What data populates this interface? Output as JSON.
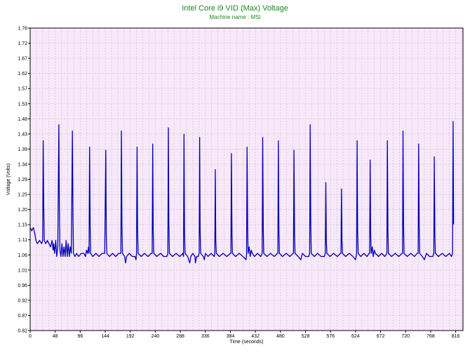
{
  "chart_data": {
    "type": "line",
    "title": "Intel Core i9 VID (Max) Voltage",
    "subtitle": "Machine name : MSI",
    "xlabel": "Time (seconds)",
    "ylabel": "Voltage (Volts)",
    "xlim": [
      0,
      830
    ],
    "ylim": [
      0.82,
      1.76
    ],
    "x_ticks": [
      0,
      48,
      96,
      144,
      192,
      240,
      288,
      336,
      384,
      432,
      480,
      528,
      576,
      624,
      672,
      720,
      768,
      816
    ],
    "y_ticks": [
      "0.82",
      "0.87",
      "0.92",
      "0.96",
      "1.01",
      "1.06",
      "1.11",
      "1.15",
      "1.20",
      "1.25",
      "1.29",
      "1.34",
      "1.39",
      "1.43",
      "1.48",
      "1.53",
      "1.57",
      "1.62",
      "1.67",
      "1.72",
      "1.76"
    ],
    "grid": true,
    "colors": {
      "line": "#0000b4",
      "background": "#f7e8fa",
      "grid": "#c8bcc8",
      "title": "#1a8a1a"
    },
    "series": [
      {
        "values": [
          [
            0,
            1.14
          ],
          [
            3,
            1.13
          ],
          [
            6,
            1.14
          ],
          [
            9,
            1.12
          ],
          [
            11,
            1.1
          ],
          [
            14,
            1.09
          ],
          [
            18,
            1.1
          ],
          [
            22,
            1.09
          ],
          [
            24,
            1.1
          ],
          [
            25,
            1.41
          ],
          [
            26,
            1.22
          ],
          [
            27,
            1.1
          ],
          [
            30,
            1.09
          ],
          [
            33,
            1.1
          ],
          [
            36,
            1.09
          ],
          [
            39,
            1.08
          ],
          [
            42,
            1.1
          ],
          [
            44,
            1.07
          ],
          [
            45,
            1.09
          ],
          [
            47,
            1.06
          ],
          [
            49,
            1.1
          ],
          [
            51,
            1.05
          ],
          [
            53,
            1.08
          ],
          [
            55,
            1.46
          ],
          [
            56,
            1.2
          ],
          [
            57,
            1.07
          ],
          [
            59,
            1.05
          ],
          [
            61,
            1.09
          ],
          [
            63,
            1.05
          ],
          [
            65,
            1.08
          ],
          [
            67,
            1.05
          ],
          [
            69,
            1.1
          ],
          [
            71,
            1.05
          ],
          [
            73,
            1.09
          ],
          [
            75,
            1.05
          ],
          [
            77,
            1.08
          ],
          [
            79,
            1.06
          ],
          [
            81,
            1.44
          ],
          [
            82,
            1.18
          ],
          [
            83,
            1.06
          ],
          [
            86,
            1.05
          ],
          [
            89,
            1.06
          ],
          [
            93,
            1.05
          ],
          [
            98,
            1.06
          ],
          [
            103,
            1.06
          ],
          [
            106,
            1.05
          ],
          [
            108,
            1.07
          ],
          [
            110,
            1.06
          ],
          [
            112,
            1.08
          ],
          [
            113,
            1.06
          ],
          [
            114,
            1.39
          ],
          [
            115,
            1.15
          ],
          [
            116,
            1.06
          ],
          [
            120,
            1.05
          ],
          [
            126,
            1.06
          ],
          [
            132,
            1.05
          ],
          [
            138,
            1.06
          ],
          [
            143,
            1.06
          ],
          [
            145,
            1.38
          ],
          [
            146,
            1.12
          ],
          [
            147,
            1.06
          ],
          [
            152,
            1.05
          ],
          [
            158,
            1.06
          ],
          [
            164,
            1.05
          ],
          [
            170,
            1.06
          ],
          [
            174,
            1.06
          ],
          [
            175,
            1.44
          ],
          [
            176,
            1.15
          ],
          [
            177,
            1.06
          ],
          [
            181,
            1.05
          ],
          [
            183,
            1.03
          ],
          [
            185,
            1.05
          ],
          [
            190,
            1.06
          ],
          [
            196,
            1.05
          ],
          [
            201,
            1.05
          ],
          [
            203,
            1.04
          ],
          [
            204,
            1.06
          ],
          [
            205,
            1.39
          ],
          [
            206,
            1.14
          ],
          [
            207,
            1.06
          ],
          [
            213,
            1.05
          ],
          [
            219,
            1.06
          ],
          [
            226,
            1.05
          ],
          [
            232,
            1.06
          ],
          [
            234,
            1.06
          ],
          [
            235,
            1.4
          ],
          [
            236,
            1.13
          ],
          [
            237,
            1.06
          ],
          [
            243,
            1.05
          ],
          [
            250,
            1.06
          ],
          [
            256,
            1.05
          ],
          [
            262,
            1.05
          ],
          [
            264,
            1.06
          ],
          [
            265,
            1.45
          ],
          [
            266,
            1.16
          ],
          [
            267,
            1.06
          ],
          [
            273,
            1.05
          ],
          [
            280,
            1.06
          ],
          [
            287,
            1.05
          ],
          [
            293,
            1.06
          ],
          [
            294,
            1.05
          ],
          [
            295,
            1.43
          ],
          [
            296,
            1.14
          ],
          [
            297,
            1.06
          ],
          [
            302,
            1.05
          ],
          [
            306,
            1.03
          ],
          [
            308,
            1.05
          ],
          [
            312,
            1.06
          ],
          [
            316,
            1.05
          ],
          [
            317,
            1.03
          ],
          [
            319,
            1.05
          ],
          [
            322,
            1.05
          ],
          [
            324,
            1.06
          ],
          [
            325,
            1.42
          ],
          [
            326,
            1.13
          ],
          [
            327,
            1.06
          ],
          [
            332,
            1.05
          ],
          [
            334,
            1.04
          ],
          [
            336,
            1.06
          ],
          [
            341,
            1.05
          ],
          [
            347,
            1.06
          ],
          [
            353,
            1.05
          ],
          [
            354,
            1.06
          ],
          [
            355,
            1.32
          ],
          [
            356,
            1.1
          ],
          [
            357,
            1.06
          ],
          [
            363,
            1.05
          ],
          [
            370,
            1.06
          ],
          [
            377,
            1.05
          ],
          [
            384,
            1.06
          ],
          [
            385,
            1.06
          ],
          [
            386,
            1.37
          ],
          [
            387,
            1.12
          ],
          [
            388,
            1.06
          ],
          [
            394,
            1.05
          ],
          [
            401,
            1.06
          ],
          [
            408,
            1.05
          ],
          [
            414,
            1.04
          ],
          [
            415,
            1.06
          ],
          [
            416,
            1.39
          ],
          [
            417,
            1.14
          ],
          [
            418,
            1.06
          ],
          [
            420,
            1.08
          ],
          [
            422,
            1.05
          ],
          [
            424,
            1.07
          ],
          [
            426,
            1.06
          ],
          [
            430,
            1.05
          ],
          [
            436,
            1.06
          ],
          [
            442,
            1.05
          ],
          [
            445,
            1.06
          ],
          [
            446,
            1.42
          ],
          [
            447,
            1.14
          ],
          [
            448,
            1.06
          ],
          [
            454,
            1.05
          ],
          [
            461,
            1.06
          ],
          [
            468,
            1.05
          ],
          [
            474,
            1.06
          ],
          [
            475,
            1.06
          ],
          [
            476,
            1.41
          ],
          [
            477,
            1.13
          ],
          [
            478,
            1.06
          ],
          [
            484,
            1.05
          ],
          [
            491,
            1.06
          ],
          [
            498,
            1.05
          ],
          [
            504,
            1.06
          ],
          [
            505,
            1.06
          ],
          [
            506,
            1.38
          ],
          [
            507,
            1.12
          ],
          [
            508,
            1.06
          ],
          [
            514,
            1.05
          ],
          [
            519,
            1.04
          ],
          [
            522,
            1.06
          ],
          [
            528,
            1.05
          ],
          [
            534,
            1.05
          ],
          [
            536,
            1.06
          ],
          [
            537,
            1.46
          ],
          [
            538,
            1.16
          ],
          [
            539,
            1.06
          ],
          [
            545,
            1.05
          ],
          [
            551,
            1.06
          ],
          [
            558,
            1.05
          ],
          [
            564,
            1.05
          ],
          [
            566,
            1.06
          ],
          [
            567,
            1.28
          ],
          [
            568,
            1.1
          ],
          [
            569,
            1.06
          ],
          [
            575,
            1.05
          ],
          [
            582,
            1.06
          ],
          [
            589,
            1.05
          ],
          [
            595,
            1.06
          ],
          [
            596,
            1.06
          ],
          [
            597,
            1.26
          ],
          [
            598,
            1.1
          ],
          [
            599,
            1.06
          ],
          [
            605,
            1.05
          ],
          [
            612,
            1.06
          ],
          [
            619,
            1.05
          ],
          [
            624,
            1.04
          ],
          [
            626,
            1.06
          ],
          [
            627,
            1.41
          ],
          [
            628,
            1.13
          ],
          [
            629,
            1.06
          ],
          [
            634,
            1.05
          ],
          [
            640,
            1.06
          ],
          [
            646,
            1.05
          ],
          [
            650,
            1.06
          ],
          [
            651,
            1.06
          ],
          [
            652,
            1.35
          ],
          [
            653,
            1.12
          ],
          [
            654,
            1.06
          ],
          [
            656,
            1.08
          ],
          [
            658,
            1.05
          ],
          [
            660,
            1.07
          ],
          [
            662,
            1.06
          ],
          [
            668,
            1.05
          ],
          [
            674,
            1.06
          ],
          [
            680,
            1.05
          ],
          [
            684,
            1.06
          ],
          [
            685,
            1.41
          ],
          [
            686,
            1.13
          ],
          [
            687,
            1.06
          ],
          [
            693,
            1.05
          ],
          [
            700,
            1.06
          ],
          [
            707,
            1.05
          ],
          [
            713,
            1.06
          ],
          [
            714,
            1.06
          ],
          [
            715,
            1.44
          ],
          [
            716,
            1.15
          ],
          [
            717,
            1.06
          ],
          [
            723,
            1.05
          ],
          [
            730,
            1.06
          ],
          [
            737,
            1.05
          ],
          [
            742,
            1.06
          ],
          [
            744,
            1.06
          ],
          [
            745,
            1.4
          ],
          [
            746,
            1.14
          ],
          [
            747,
            1.06
          ],
          [
            752,
            1.05
          ],
          [
            756,
            1.04
          ],
          [
            760,
            1.06
          ],
          [
            766,
            1.05
          ],
          [
            772,
            1.05
          ],
          [
            774,
            1.06
          ],
          [
            775,
            1.36
          ],
          [
            776,
            1.12
          ],
          [
            777,
            1.06
          ],
          [
            783,
            1.05
          ],
          [
            790,
            1.06
          ],
          [
            797,
            1.05
          ],
          [
            804,
            1.06
          ],
          [
            808,
            1.05
          ],
          [
            810,
            1.06
          ],
          [
            811,
            1.47
          ],
          [
            812,
            1.15
          ]
        ]
      }
    ]
  }
}
